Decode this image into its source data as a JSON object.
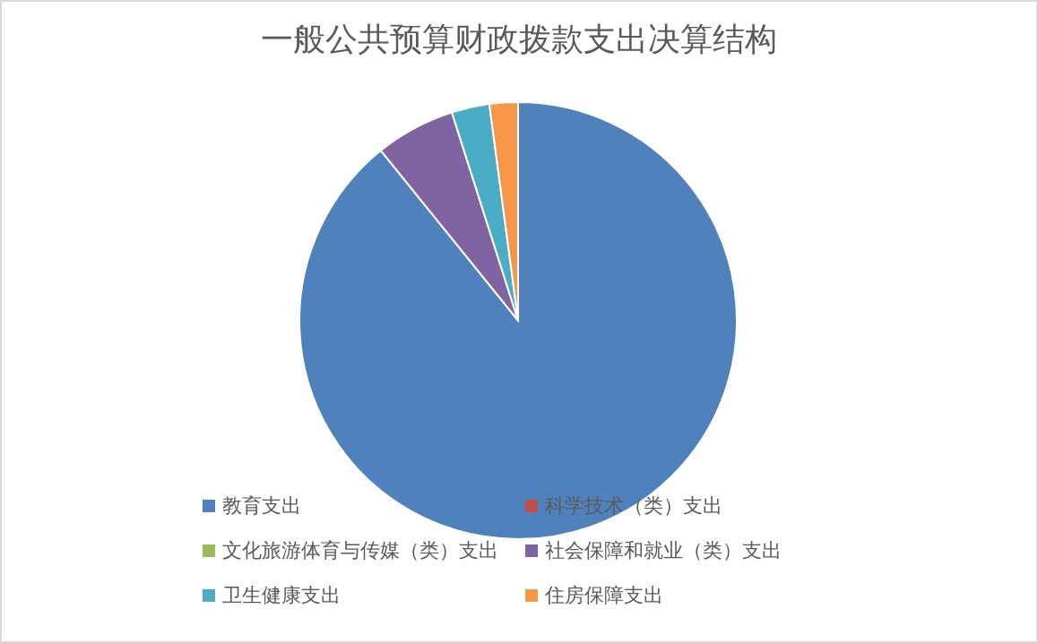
{
  "chart_data": {
    "type": "pie",
    "title": "一般公共预算财政拨款支出决算结构",
    "categories": [
      "教育支出",
      "科学技术（类）支出",
      "文化旅游体育与传媒（类）支出",
      "社会保障和就业（类）支出",
      "卫生健康支出",
      "住房保障支出"
    ],
    "values": [
      89.2,
      0,
      0,
      5.9,
      2.8,
      2.1
    ],
    "colors": [
      "#4f81bd",
      "#c0504d",
      "#9bbb59",
      "#8064a2",
      "#4bacc6",
      "#f79646"
    ],
    "legend": "bottom"
  }
}
